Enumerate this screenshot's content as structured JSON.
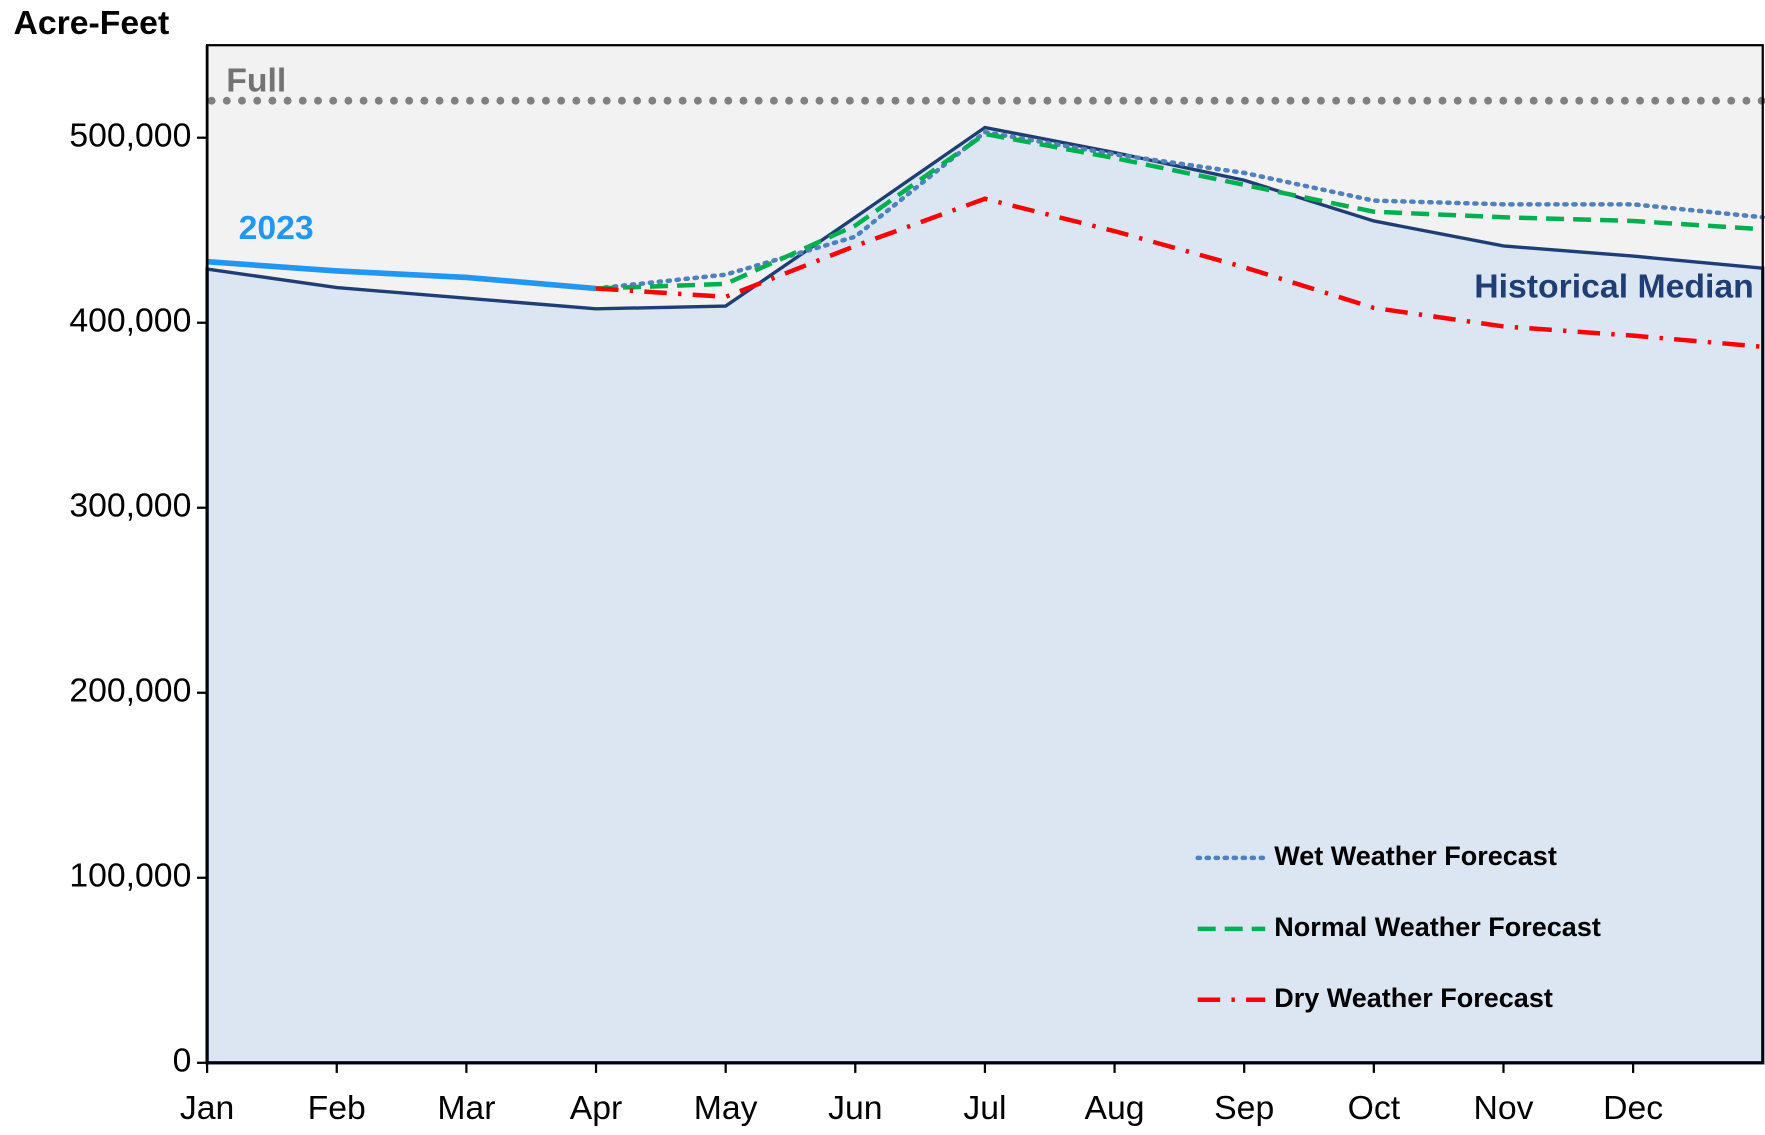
{
  "chart_data": {
    "type": "line",
    "y_label": "Acre-Feet",
    "xlim": [
      0,
      12
    ],
    "xticks": [
      {
        "value": 0,
        "label": "Jan"
      },
      {
        "value": 1,
        "label": "Feb"
      },
      {
        "value": 2,
        "label": "Mar"
      },
      {
        "value": 3,
        "label": "Apr"
      },
      {
        "value": 4,
        "label": "May"
      },
      {
        "value": 5,
        "label": "Jun"
      },
      {
        "value": 6,
        "label": "Jul"
      },
      {
        "value": 7,
        "label": "Aug"
      },
      {
        "value": 8,
        "label": "Sep"
      },
      {
        "value": 9,
        "label": "Oct"
      },
      {
        "value": 10,
        "label": "Nov"
      },
      {
        "value": 11,
        "label": "Dec"
      }
    ],
    "ylim": [
      0,
      550000
    ],
    "yticks": [
      0,
      {
        "value": 100000,
        "label": "100,000"
      },
      {
        "value": 200000,
        "label": "200,000"
      },
      {
        "value": 300000,
        "label": "300,000"
      },
      {
        "value": 400000,
        "label": "400,000"
      },
      {
        "value": 500000,
        "label": "500,000"
      }
    ],
    "reference_line": {
      "name": "Full",
      "value": 520000,
      "color": "#808080"
    },
    "legend": "lower right",
    "series": [
      {
        "name": "Historical Median",
        "color": "#1f3f74",
        "fill": "#dce6f2",
        "style": "area",
        "in_legend": false,
        "x": [
          0,
          1,
          3,
          4,
          5,
          6,
          7,
          8,
          9,
          10,
          11,
          12
        ],
        "values": [
          429000,
          419000,
          407500,
          409000,
          457000,
          505500,
          492000,
          477000,
          455000,
          441500,
          436000,
          429500
        ]
      },
      {
        "name": "2023",
        "color": "#2196f3",
        "style": "solid",
        "in_legend": false,
        "x": [
          0,
          1,
          2,
          3
        ],
        "values": [
          433000,
          428000,
          424500,
          418500
        ]
      },
      {
        "name": "Wet Weather Forecast",
        "color": "#4f81bd",
        "style": "dotted",
        "in_legend": true,
        "x": [
          3,
          4,
          5,
          6,
          7,
          8,
          9,
          10,
          11,
          12
        ],
        "values": [
          418500,
          426000,
          446500,
          503000,
          491000,
          481000,
          466000,
          464000,
          464000,
          457000
        ]
      },
      {
        "name": "Normal Weather Forecast",
        "color": "#00b050",
        "style": "dashed",
        "in_legend": true,
        "x": [
          3,
          4,
          5,
          6,
          7,
          8,
          9,
          10,
          11,
          12
        ],
        "values": [
          418500,
          421000,
          452500,
          502000,
          489000,
          474500,
          460000,
          457000,
          455000,
          450500
        ]
      },
      {
        "name": "Dry Weather Forecast",
        "color": "#ff0000",
        "style": "dashdot",
        "in_legend": true,
        "x": [
          3,
          4,
          5,
          6,
          7,
          8,
          9,
          10,
          11,
          12
        ],
        "values": [
          418500,
          414000,
          441500,
          467000,
          449500,
          430000,
          408000,
          398000,
          393000,
          387000
        ]
      }
    ]
  }
}
